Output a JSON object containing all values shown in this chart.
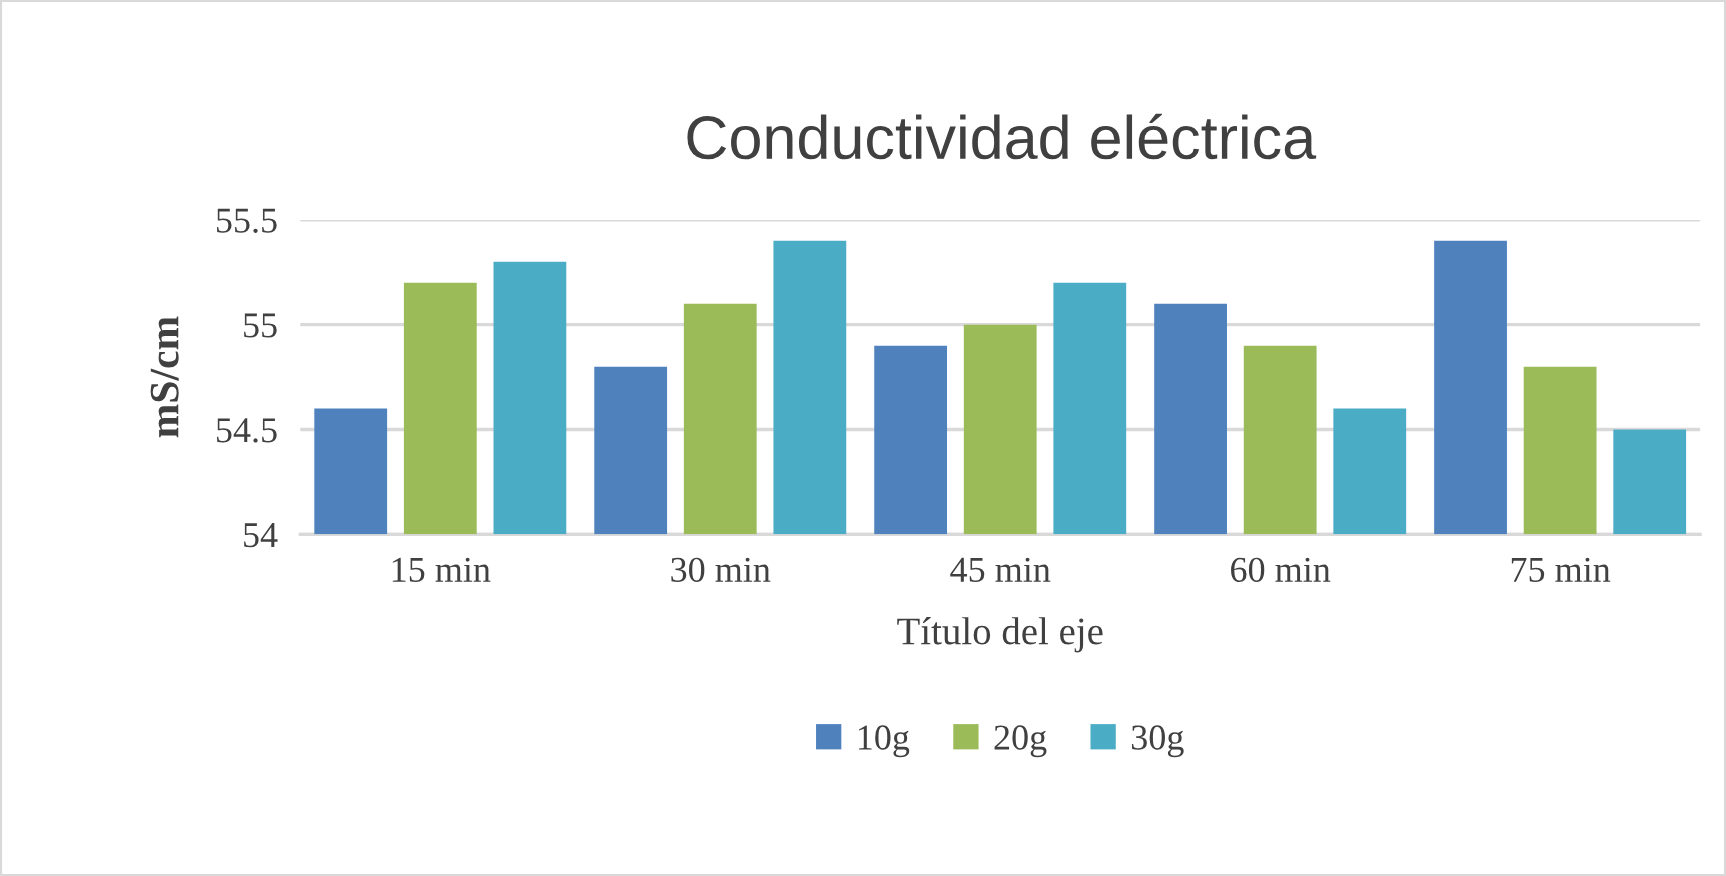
{
  "chart_data": {
    "type": "bar",
    "title": "Conductividad eléctrica",
    "xlabel": "Título del eje",
    "ylabel": "mS/cm",
    "categories": [
      "15 min",
      "30 min",
      "45 min",
      "60 min",
      "75 min"
    ],
    "series": [
      {
        "name": "10g",
        "color": "#4f81bd",
        "values": [
          54.6,
          54.8,
          54.9,
          55.1,
          55.4
        ]
      },
      {
        "name": "20g",
        "color": "#9bbb59",
        "values": [
          55.2,
          55.1,
          55.0,
          54.9,
          54.8
        ]
      },
      {
        "name": "30g",
        "color": "#4bacc6",
        "values": [
          55.3,
          55.4,
          55.2,
          54.6,
          54.5
        ]
      }
    ],
    "ylim": [
      54,
      55.5
    ],
    "yticks": [
      54,
      54.5,
      55,
      55.5
    ],
    "grid": "y",
    "legend": "bottom"
  }
}
